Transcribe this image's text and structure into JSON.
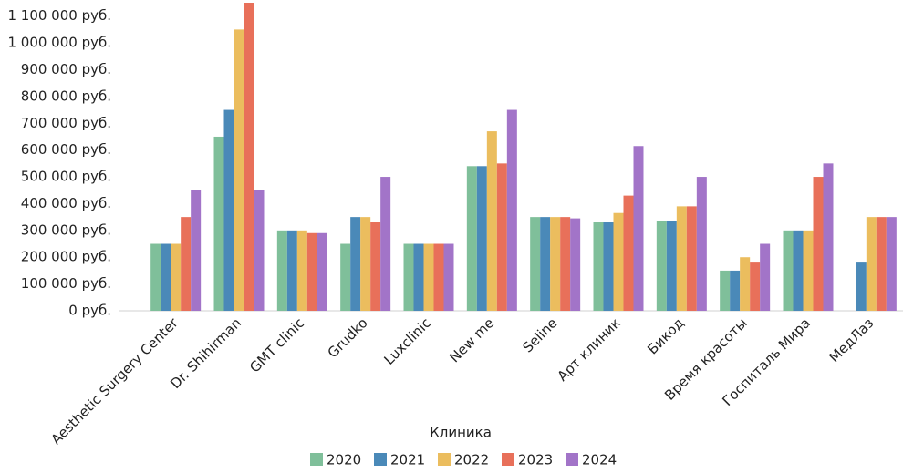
{
  "chart_data": {
    "type": "bar",
    "x_label": "Клиника",
    "categories": [
      "Aesthetic Surgery Center",
      "Dr. Shihirman",
      "GMT clinic",
      "Grudko",
      "Luxclinic",
      "New me",
      "Seline",
      "Арт клиник",
      "Бикод",
      "Время красоты",
      "Госпиталь Мира",
      "МедЛаз"
    ],
    "series": [
      {
        "name": "2020",
        "color": "#7fbf9a",
        "values": [
          250000,
          650000,
          300000,
          250000,
          250000,
          540000,
          350000,
          330000,
          335000,
          150000,
          300000,
          null
        ]
      },
      {
        "name": "2021",
        "color": "#4a89b8",
        "values": [
          250000,
          750000,
          300000,
          350000,
          250000,
          540000,
          350000,
          330000,
          335000,
          150000,
          300000,
          180000
        ]
      },
      {
        "name": "2022",
        "color": "#ebbd5e",
        "values": [
          250000,
          1050000,
          300000,
          350000,
          250000,
          670000,
          350000,
          365000,
          390000,
          200000,
          300000,
          350000
        ]
      },
      {
        "name": "2023",
        "color": "#e8705a",
        "values": [
          350000,
          1150000,
          290000,
          330000,
          250000,
          550000,
          350000,
          430000,
          390000,
          180000,
          500000,
          350000
        ]
      },
      {
        "name": "2024",
        "color": "#a274c8",
        "values": [
          450000,
          450000,
          290000,
          500000,
          250000,
          750000,
          345000,
          615000,
          500000,
          250000,
          550000,
          350000
        ]
      }
    ],
    "ylim": [
      0,
      1150000
    ],
    "yticks": [
      {
        "value": 0,
        "label": "0 руб."
      },
      {
        "value": 100000,
        "label": "100 000 руб."
      },
      {
        "value": 200000,
        "label": "200 000 руб."
      },
      {
        "value": 300000,
        "label": "300 000 руб."
      },
      {
        "value": 400000,
        "label": "400 000 руб."
      },
      {
        "value": 500000,
        "label": "500 000 руб."
      },
      {
        "value": 600000,
        "label": "600 000 руб."
      },
      {
        "value": 700000,
        "label": "700 000 руб."
      },
      {
        "value": 800000,
        "label": "800 000 руб."
      },
      {
        "value": 900000,
        "label": "900 000 руб."
      },
      {
        "value": 1000000,
        "label": "1 000 000 руб."
      },
      {
        "value": 1100000,
        "label": "1 100 000 руб."
      }
    ],
    "grid": false,
    "legend": "bottom"
  }
}
